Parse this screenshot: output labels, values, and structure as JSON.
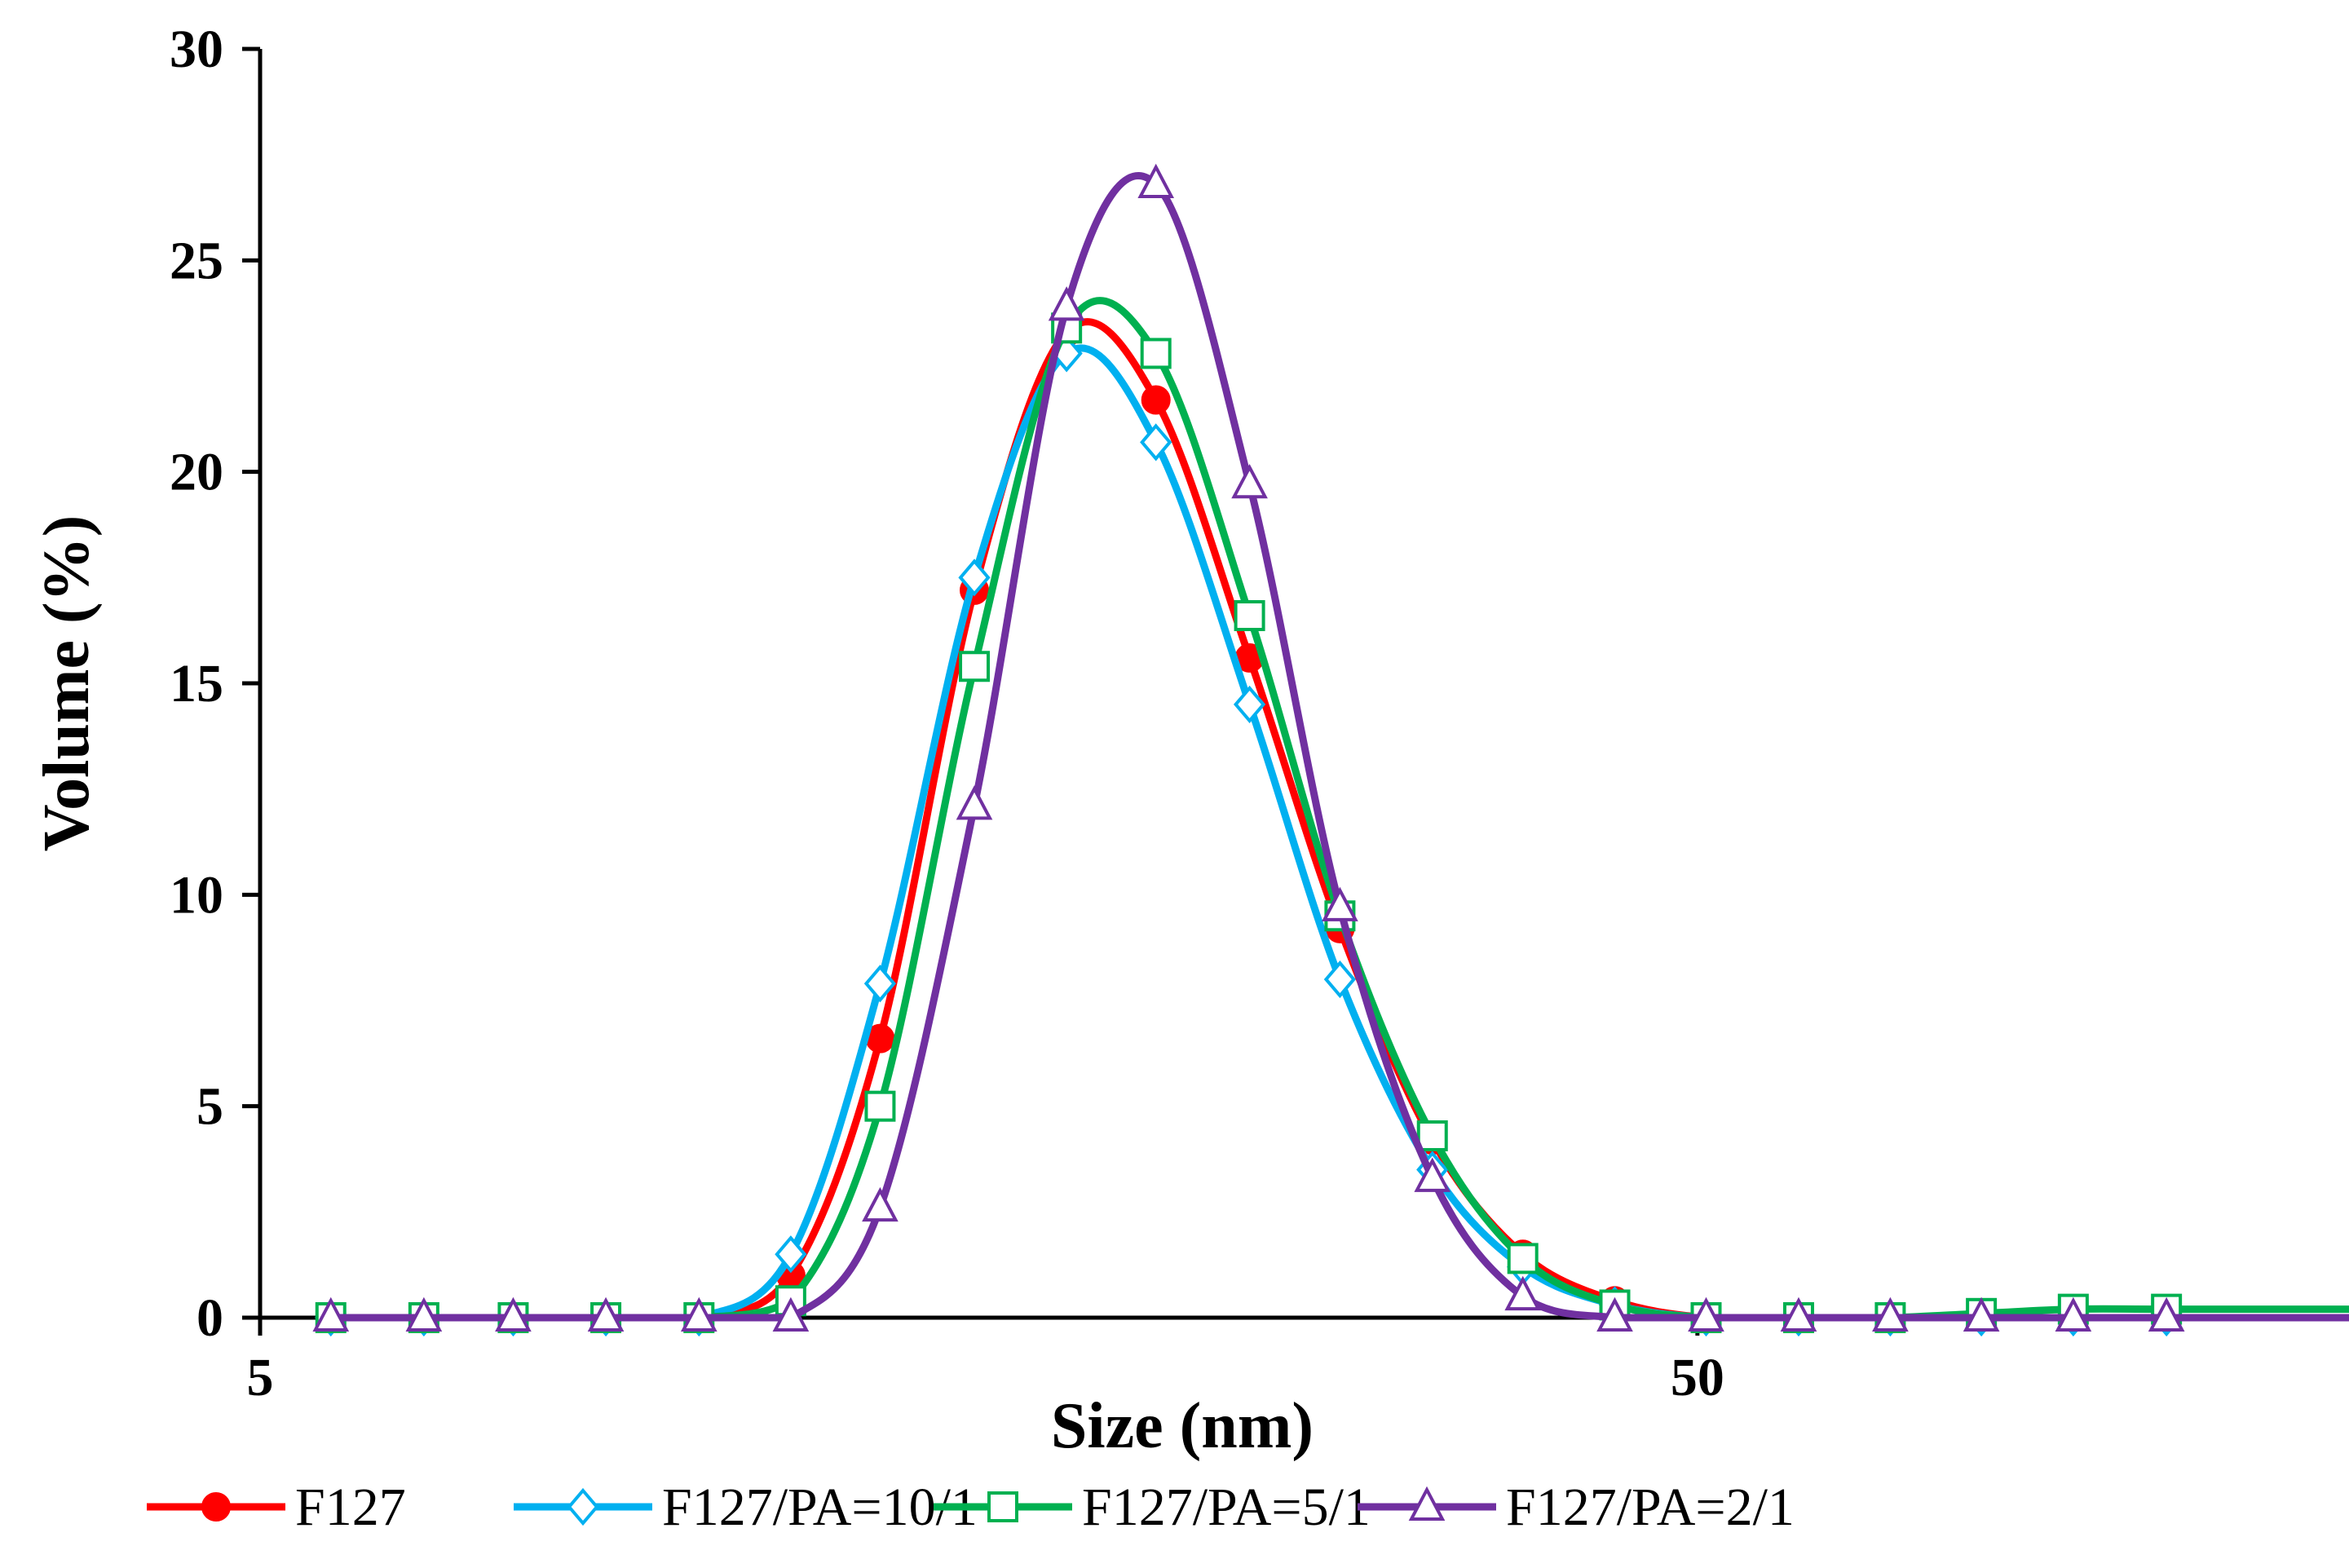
{
  "chart_data": {
    "type": "line",
    "title": "",
    "xlabel": "Size (nm)",
    "ylabel": "Volume (%)",
    "x_scale": "log",
    "xlim": [
      5,
      142
    ],
    "ylim": [
      0,
      30
    ],
    "y_ticks": [
      0,
      5,
      10,
      15,
      20,
      25,
      30
    ],
    "x_tick_labels": [
      {
        "value": 5,
        "label": "5"
      },
      {
        "value": 50,
        "label": "50"
      }
    ],
    "grid": false,
    "legend_position": "bottom",
    "x": [
      5.6,
      6.5,
      7.5,
      8.7,
      10.1,
      11.7,
      13.5,
      15.7,
      18.2,
      21.0,
      24.4,
      28.2,
      32.7,
      37.8,
      43.8,
      50.7,
      58.8,
      68.1,
      78.8,
      91.3,
      106.0
    ],
    "series": [
      {
        "name": "F127",
        "color": "#ff0000",
        "marker": "circle-filled",
        "values": [
          0,
          0,
          0,
          0,
          0,
          1.0,
          6.6,
          17.2,
          23.3,
          21.7,
          15.6,
          9.2,
          4.2,
          1.5,
          0.4,
          0,
          0,
          0,
          0,
          0,
          0
        ]
      },
      {
        "name": "F127/PA=10/1",
        "color": "#00b0f0",
        "marker": "diamond-open",
        "values": [
          0,
          0,
          0,
          0,
          0,
          1.5,
          7.9,
          17.5,
          22.8,
          20.7,
          14.5,
          8.0,
          3.5,
          1.2,
          0.3,
          0,
          0,
          0,
          0,
          0,
          0
        ]
      },
      {
        "name": "F127/PA=5/1",
        "color": "#00b050",
        "marker": "square-open",
        "values": [
          0,
          0,
          0,
          0,
          0,
          0.4,
          5.0,
          15.4,
          23.4,
          22.8,
          16.6,
          9.5,
          4.3,
          1.4,
          0.3,
          0,
          0,
          0,
          0.1,
          0.2,
          0.2
        ]
      },
      {
        "name": "F127/PA=2/1",
        "color": "#7030a0",
        "marker": "triangle-open",
        "values": [
          0,
          0,
          0,
          0,
          0,
          0,
          2.6,
          12.1,
          23.9,
          26.8,
          19.7,
          9.7,
          3.3,
          0.5,
          0,
          0,
          0,
          0,
          0,
          0,
          0
        ]
      }
    ]
  }
}
